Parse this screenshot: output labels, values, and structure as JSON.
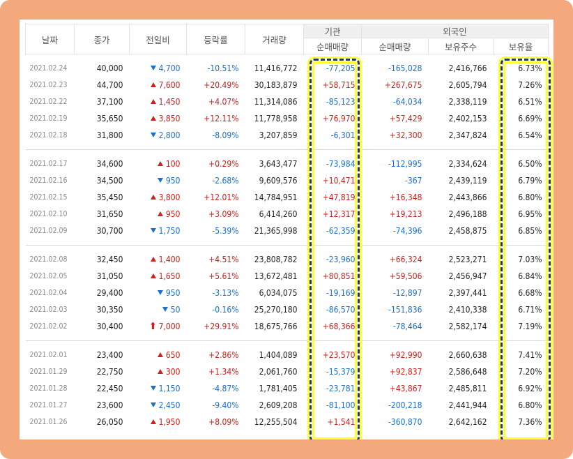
{
  "headers": {
    "date": "날짜",
    "close": "종가",
    "change": "전일비",
    "rate": "등락률",
    "volume": "거래량",
    "institution": "기관",
    "inst_net": "순매매량",
    "foreign": "외국인",
    "foreign_net": "순매매량",
    "foreign_hold": "보유주수",
    "foreign_ratio": "보유율"
  },
  "colors": {
    "up": "#d0201b",
    "down": "#1a6fd0",
    "frame": "#f4a97c",
    "highlight": "#ffff33"
  },
  "groups": [
    [
      {
        "date": "2021.02.24",
        "close": "40,000",
        "dir": "down",
        "change": "4,700",
        "rate": "-10.51%",
        "volume": "11,416,772",
        "inst": "-77,205",
        "foreign": "-165,028",
        "hold": "2,416,766",
        "ratio": "6.73%"
      },
      {
        "date": "2021.02.23",
        "close": "44,700",
        "dir": "up",
        "change": "7,600",
        "rate": "+20.49%",
        "volume": "30,183,879",
        "inst": "+58,715",
        "foreign": "+267,675",
        "hold": "2,605,794",
        "ratio": "7.26%"
      },
      {
        "date": "2021.02.22",
        "close": "37,100",
        "dir": "up",
        "change": "1,450",
        "rate": "+4.07%",
        "volume": "11,314,086",
        "inst": "-85,123",
        "foreign": "-64,034",
        "hold": "2,338,119",
        "ratio": "6.51%"
      },
      {
        "date": "2021.02.19",
        "close": "35,650",
        "dir": "up",
        "change": "3,850",
        "rate": "+12.11%",
        "volume": "11,778,958",
        "inst": "+76,970",
        "foreign": "+57,429",
        "hold": "2,402,153",
        "ratio": "6.69%"
      },
      {
        "date": "2021.02.18",
        "close": "31,800",
        "dir": "down",
        "change": "2,800",
        "rate": "-8.09%",
        "volume": "3,207,859",
        "inst": "-6,301",
        "foreign": "+32,300",
        "hold": "2,347,824",
        "ratio": "6.54%"
      }
    ],
    [
      {
        "date": "2021.02.17",
        "close": "34,600",
        "dir": "up",
        "change": "100",
        "rate": "+0.29%",
        "volume": "3,643,477",
        "inst": "-73,984",
        "foreign": "-112,995",
        "hold": "2,334,624",
        "ratio": "6.50%"
      },
      {
        "date": "2021.02.16",
        "close": "34,500",
        "dir": "down",
        "change": "950",
        "rate": "-2.68%",
        "volume": "9,609,576",
        "inst": "+10,471",
        "foreign": "-367",
        "hold": "2,439,119",
        "ratio": "6.79%"
      },
      {
        "date": "2021.02.15",
        "close": "35,450",
        "dir": "up",
        "change": "3,800",
        "rate": "+12.01%",
        "volume": "14,784,951",
        "inst": "+47,819",
        "foreign": "+16,348",
        "hold": "2,443,866",
        "ratio": "6.80%"
      },
      {
        "date": "2021.02.10",
        "close": "31,650",
        "dir": "up",
        "change": "950",
        "rate": "+3.09%",
        "volume": "6,414,260",
        "inst": "+12,317",
        "foreign": "+19,213",
        "hold": "2,496,188",
        "ratio": "6.95%"
      },
      {
        "date": "2021.02.09",
        "close": "30,700",
        "dir": "down",
        "change": "1,750",
        "rate": "-5.39%",
        "volume": "21,365,998",
        "inst": "-62,359",
        "foreign": "-74,396",
        "hold": "2,458,875",
        "ratio": "6.85%"
      }
    ],
    [
      {
        "date": "2021.02.08",
        "close": "32,450",
        "dir": "up",
        "change": "1,400",
        "rate": "+4.51%",
        "volume": "23,808,782",
        "inst": "-23,960",
        "foreign": "+66,324",
        "hold": "2,523,271",
        "ratio": "7.03%"
      },
      {
        "date": "2021.02.05",
        "close": "31,050",
        "dir": "up",
        "change": "1,650",
        "rate": "+5.61%",
        "volume": "13,672,481",
        "inst": "+80,851",
        "foreign": "+59,506",
        "hold": "2,456,947",
        "ratio": "6.84%"
      },
      {
        "date": "2021.02.04",
        "close": "29,400",
        "dir": "down",
        "change": "950",
        "rate": "-3.13%",
        "volume": "6,034,075",
        "inst": "-19,169",
        "foreign": "-12,897",
        "hold": "2,397,441",
        "ratio": "6.68%"
      },
      {
        "date": "2021.02.03",
        "close": "30,350",
        "dir": "down",
        "change": "50",
        "rate": "-0.16%",
        "volume": "25,270,180",
        "inst": "-86,570",
        "foreign": "-151,836",
        "hold": "2,410,338",
        "ratio": "6.71%"
      },
      {
        "date": "2021.02.02",
        "close": "30,400",
        "dir": "limitup",
        "change": "7,000",
        "rate": "+29.91%",
        "volume": "18,675,766",
        "inst": "+68,366",
        "foreign": "-78,464",
        "hold": "2,582,174",
        "ratio": "7.19%"
      }
    ],
    [
      {
        "date": "2021.02.01",
        "close": "23,400",
        "dir": "up",
        "change": "650",
        "rate": "+2.86%",
        "volume": "1,404,089",
        "inst": "+23,570",
        "foreign": "+92,990",
        "hold": "2,660,638",
        "ratio": "7.41%"
      },
      {
        "date": "2021.01.29",
        "close": "22,750",
        "dir": "up",
        "change": "300",
        "rate": "+1.34%",
        "volume": "2,061,760",
        "inst": "-15,379",
        "foreign": "+92,837",
        "hold": "2,586,648",
        "ratio": "7.20%"
      },
      {
        "date": "2021.01.28",
        "close": "22,450",
        "dir": "down",
        "change": "1,150",
        "rate": "-4.87%",
        "volume": "1,781,405",
        "inst": "-23,781",
        "foreign": "+43,867",
        "hold": "2,485,811",
        "ratio": "6.92%"
      },
      {
        "date": "2021.01.27",
        "close": "23,600",
        "dir": "down",
        "change": "2,450",
        "rate": "-9.40%",
        "volume": "2,609,208",
        "inst": "-81,100",
        "foreign": "-200,218",
        "hold": "2,441,944",
        "ratio": "6.80%"
      },
      {
        "date": "2021.01.26",
        "close": "26,050",
        "dir": "up",
        "change": "1,950",
        "rate": "+8.09%",
        "volume": "12,255,504",
        "inst": "+1,541",
        "foreign": "-360,870",
        "hold": "2,642,162",
        "ratio": "7.36%"
      }
    ]
  ]
}
